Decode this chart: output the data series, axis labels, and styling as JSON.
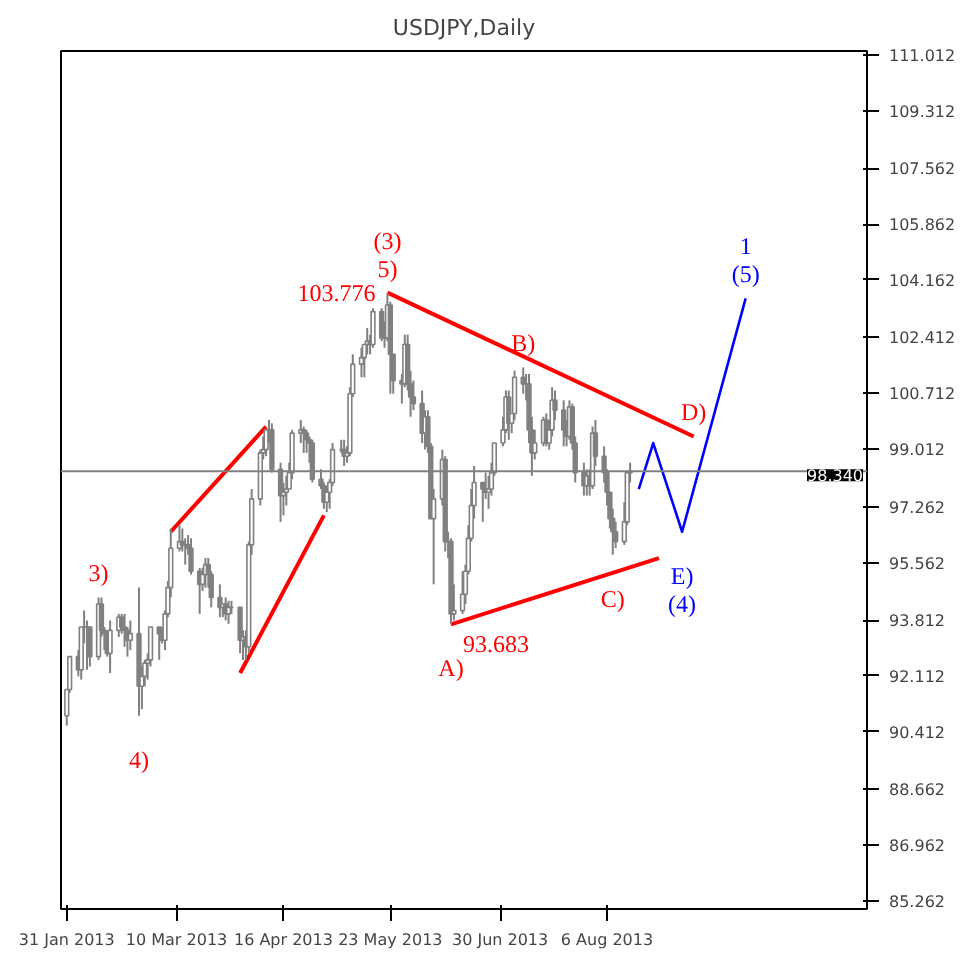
{
  "chart_data": {
    "type": "candlestick",
    "title": "USDJPY,Daily",
    "color": "#808080",
    "x": [
      "2013-01-31",
      "2013-02-01",
      "2013-02-04",
      "2013-02-05",
      "2013-02-06",
      "2013-02-07",
      "2013-02-08",
      "2013-02-11",
      "2013-02-12",
      "2013-02-13",
      "2013-02-14",
      "2013-02-15",
      "2013-02-18",
      "2013-02-19",
      "2013-02-20",
      "2013-02-21",
      "2013-02-22",
      "2013-02-25",
      "2013-02-26",
      "2013-02-27",
      "2013-02-28",
      "2013-03-01",
      "2013-03-04",
      "2013-03-05",
      "2013-03-06",
      "2013-03-07",
      "2013-03-08",
      "2013-03-11",
      "2013-03-12",
      "2013-03-13",
      "2013-03-14",
      "2013-03-15",
      "2013-03-18",
      "2013-03-19",
      "2013-03-20",
      "2013-03-21",
      "2013-03-22",
      "2013-03-25",
      "2013-03-26",
      "2013-03-27",
      "2013-03-28",
      "2013-03-29",
      "2013-04-01",
      "2013-04-02",
      "2013-04-03",
      "2013-04-04",
      "2013-04-05",
      "2013-04-08",
      "2013-04-09",
      "2013-04-10",
      "2013-04-11",
      "2013-04-12",
      "2013-04-15",
      "2013-04-16",
      "2013-04-17",
      "2013-04-18",
      "2013-04-19",
      "2013-04-22",
      "2013-04-23",
      "2013-04-24",
      "2013-04-25",
      "2013-04-26",
      "2013-04-29",
      "2013-04-30",
      "2013-05-01",
      "2013-05-02",
      "2013-05-03",
      "2013-05-06",
      "2013-05-07",
      "2013-05-08",
      "2013-05-09",
      "2013-05-10",
      "2013-05-13",
      "2013-05-14",
      "2013-05-15",
      "2013-05-16",
      "2013-05-17",
      "2013-05-20",
      "2013-05-21",
      "2013-05-22",
      "2013-05-23",
      "2013-05-24",
      "2013-05-27",
      "2013-05-28",
      "2013-05-29",
      "2013-05-30",
      "2013-05-31",
      "2013-06-03",
      "2013-06-04",
      "2013-06-05",
      "2013-06-06",
      "2013-06-07",
      "2013-06-10",
      "2013-06-11",
      "2013-06-12",
      "2013-06-13",
      "2013-06-14",
      "2013-06-17",
      "2013-06-18",
      "2013-06-19",
      "2013-06-20",
      "2013-06-21",
      "2013-06-24",
      "2013-06-25",
      "2013-06-26",
      "2013-06-27",
      "2013-06-28",
      "2013-07-01",
      "2013-07-02",
      "2013-07-03",
      "2013-07-04",
      "2013-07-05",
      "2013-07-08",
      "2013-07-09",
      "2013-07-10",
      "2013-07-11",
      "2013-07-12",
      "2013-07-15",
      "2013-07-16",
      "2013-07-17",
      "2013-07-18",
      "2013-07-19",
      "2013-07-22",
      "2013-07-23",
      "2013-07-24",
      "2013-07-25",
      "2013-07-26",
      "2013-07-29",
      "2013-07-30",
      "2013-07-31",
      "2013-08-01",
      "2013-08-02",
      "2013-08-05",
      "2013-08-06",
      "2013-08-07",
      "2013-08-08",
      "2013-08-09",
      "2013-08-12",
      "2013-08-13",
      "2013-08-14"
    ],
    "ohlc": [
      [
        90.9,
        91.7,
        90.6,
        91.7
      ],
      [
        91.7,
        92.7,
        91.6,
        92.7
      ],
      [
        92.7,
        92.9,
        92.1,
        92.3
      ],
      [
        92.3,
        93.6,
        92.0,
        93.6
      ],
      [
        93.6,
        94.1,
        93.1,
        93.6
      ],
      [
        93.6,
        93.8,
        92.3,
        93.6
      ],
      [
        93.6,
        93.6,
        92.4,
        92.7
      ],
      [
        92.7,
        94.5,
        92.6,
        94.3
      ],
      [
        94.3,
        94.5,
        93.3,
        93.5
      ],
      [
        93.5,
        93.6,
        92.9,
        93.4
      ],
      [
        93.4,
        93.5,
        92.7,
        92.8
      ],
      [
        92.8,
        93.8,
        92.2,
        93.5
      ],
      [
        93.5,
        94.0,
        93.3,
        93.9
      ],
      [
        93.9,
        94.0,
        93.4,
        93.6
      ],
      [
        93.6,
        94.0,
        93.0,
        93.5
      ],
      [
        93.5,
        93.6,
        92.7,
        93.2
      ],
      [
        93.2,
        93.8,
        92.9,
        93.4
      ],
      [
        93.4,
        94.8,
        90.9,
        91.8
      ],
      [
        91.8,
        92.4,
        91.1,
        92.1
      ],
      [
        92.1,
        92.6,
        91.8,
        92.5
      ],
      [
        92.5,
        92.8,
        92.0,
        92.6
      ],
      [
        92.6,
        93.6,
        92.4,
        93.6
      ],
      [
        93.6,
        93.6,
        92.6,
        93.4
      ],
      [
        93.4,
        93.6,
        93.1,
        93.2
      ],
      [
        93.2,
        94.1,
        92.9,
        94.0
      ],
      [
        94.0,
        95.0,
        93.9,
        94.8
      ],
      [
        94.8,
        96.6,
        94.5,
        96.0
      ],
      [
        96.0,
        96.7,
        95.9,
        96.2
      ],
      [
        96.2,
        96.6,
        95.9,
        96.1
      ],
      [
        96.1,
        96.3,
        95.5,
        96.1
      ],
      [
        96.1,
        96.4,
        95.8,
        96.0
      ],
      [
        96.0,
        96.3,
        95.2,
        95.3
      ],
      [
        95.3,
        95.4,
        94.0,
        94.9
      ],
      [
        94.9,
        95.4,
        94.7,
        95.2
      ],
      [
        95.2,
        95.7,
        94.8,
        95.5
      ],
      [
        95.5,
        95.7,
        94.8,
        95.2
      ],
      [
        95.2,
        95.3,
        94.2,
        94.5
      ],
      [
        94.5,
        94.9,
        93.9,
        94.2
      ],
      [
        94.2,
        94.3,
        93.9,
        94.3
      ],
      [
        94.3,
        94.5,
        93.8,
        94.0
      ],
      [
        94.0,
        94.4,
        93.7,
        94.2
      ],
      [
        94.2,
        94.4,
        94.0,
        94.2
      ],
      [
        94.2,
        94.2,
        92.8,
        93.2
      ],
      [
        93.2,
        93.5,
        92.6,
        93.3
      ],
      [
        93.3,
        93.5,
        92.6,
        93.0
      ],
      [
        93.0,
        96.2,
        92.8,
        96.1
      ],
      [
        96.1,
        97.8,
        95.8,
        97.5
      ],
      [
        97.5,
        99.0,
        97.3,
        98.9
      ],
      [
        98.9,
        99.4,
        98.7,
        99.0
      ],
      [
        99.0,
        99.6,
        98.8,
        99.6
      ],
      [
        99.6,
        99.9,
        99.2,
        99.6
      ],
      [
        99.6,
        99.8,
        98.3,
        98.4
      ],
      [
        98.4,
        98.6,
        96.8,
        97.6
      ],
      [
        97.6,
        98.0,
        97.0,
        97.7
      ],
      [
        97.7,
        98.2,
        97.3,
        97.8
      ],
      [
        97.8,
        98.6,
        97.8,
        98.3
      ],
      [
        98.3,
        99.6,
        98.1,
        99.5
      ],
      [
        99.5,
        99.9,
        99.2,
        99.6
      ],
      [
        99.6,
        99.7,
        98.9,
        99.5
      ],
      [
        99.5,
        99.6,
        98.9,
        99.3
      ],
      [
        99.3,
        99.4,
        98.6,
        99.2
      ],
      [
        99.2,
        99.3,
        98.0,
        98.1
      ],
      [
        98.1,
        98.4,
        97.8,
        97.9
      ],
      [
        97.9,
        98.0,
        97.2,
        97.4
      ],
      [
        97.4,
        97.9,
        97.1,
        97.7
      ],
      [
        97.7,
        98.1,
        97.2,
        98.0
      ],
      [
        98.0,
        99.2,
        97.9,
        99.0
      ],
      [
        99.0,
        99.3,
        98.9,
        99.0
      ],
      [
        99.0,
        99.3,
        98.5,
        98.8
      ],
      [
        98.8,
        99.1,
        98.6,
        98.9
      ],
      [
        98.9,
        100.9,
        98.8,
        100.7
      ],
      [
        100.7,
        101.9,
        100.6,
        101.6
      ],
      [
        101.6,
        102.1,
        101.2,
        101.8
      ],
      [
        101.8,
        102.2,
        101.2,
        102.2
      ],
      [
        102.2,
        102.7,
        101.9,
        102.3
      ],
      [
        102.3,
        102.5,
        101.9,
        102.2
      ],
      [
        102.2,
        103.3,
        102.1,
        103.2
      ],
      [
        103.2,
        103.3,
        102.3,
        102.4
      ],
      [
        102.4,
        102.9,
        102.1,
        102.4
      ],
      [
        102.4,
        103.776,
        102.3,
        103.4
      ],
      [
        103.4,
        103.5,
        100.7,
        101.9
      ],
      [
        101.9,
        101.9,
        100.7,
        101.1
      ],
      [
        101.1,
        101.3,
        100.4,
        101.0
      ],
      [
        101.0,
        102.5,
        100.9,
        102.2
      ],
      [
        102.2,
        102.5,
        100.8,
        101.0
      ],
      [
        101.0,
        101.4,
        100.0,
        100.6
      ],
      [
        100.6,
        101.1,
        100.2,
        100.4
      ],
      [
        100.4,
        100.8,
        99.2,
        99.5
      ],
      [
        99.5,
        100.2,
        99.0,
        100.0
      ],
      [
        100.0,
        100.2,
        98.9,
        99.1
      ],
      [
        99.1,
        99.2,
        96.9,
        96.9
      ],
      [
        96.9,
        97.8,
        94.9,
        97.5
      ],
      [
        97.5,
        99.0,
        97.3,
        98.7
      ],
      [
        98.7,
        98.8,
        95.9,
        96.2
      ],
      [
        96.2,
        96.5,
        95.7,
        96.2
      ],
      [
        96.2,
        96.3,
        93.683,
        94.0
      ],
      [
        94.0,
        94.9,
        93.8,
        94.1
      ],
      [
        94.1,
        95.3,
        94.0,
        94.6
      ],
      [
        94.6,
        95.5,
        94.3,
        95.3
      ],
      [
        95.3,
        96.7,
        95.2,
        96.3
      ],
      [
        96.3,
        97.8,
        96.2,
        97.3
      ],
      [
        97.3,
        98.5,
        96.9,
        98.0
      ],
      [
        98.0,
        98.0,
        96.8,
        97.8
      ],
      [
        97.8,
        98.3,
        97.5,
        97.7
      ],
      [
        97.7,
        98.2,
        97.2,
        97.8
      ],
      [
        97.8,
        98.6,
        97.6,
        98.3
      ],
      [
        98.3,
        99.2,
        98.2,
        99.2
      ],
      [
        99.2,
        100.0,
        99.1,
        99.6
      ],
      [
        99.6,
        100.8,
        99.5,
        100.6
      ],
      [
        100.6,
        100.8,
        99.3,
        99.8
      ],
      [
        99.8,
        100.1,
        99.5,
        100.1
      ],
      [
        100.1,
        101.4,
        99.9,
        101.2
      ],
      [
        101.2,
        101.5,
        100.7,
        101.0
      ],
      [
        101.0,
        101.3,
        100.5,
        101.0
      ],
      [
        101.0,
        101.3,
        99.2,
        99.6
      ],
      [
        99.6,
        100.0,
        98.2,
        98.9
      ],
      [
        98.9,
        99.6,
        98.7,
        99.2
      ],
      [
        99.2,
        100.0,
        99.1,
        99.9
      ],
      [
        99.9,
        100.1,
        99.1,
        99.2
      ],
      [
        99.2,
        99.9,
        99.0,
        99.6
      ],
      [
        99.6,
        100.9,
        99.4,
        100.5
      ],
      [
        100.5,
        100.8,
        99.9,
        100.2
      ],
      [
        100.2,
        100.5,
        99.1,
        99.6
      ],
      [
        99.6,
        99.9,
        99.1,
        99.4
      ],
      [
        99.4,
        100.5,
        99.3,
        100.3
      ],
      [
        100.3,
        100.4,
        99.0,
        99.2
      ],
      [
        99.2,
        99.4,
        98.0,
        98.3
      ],
      [
        98.3,
        98.6,
        97.6,
        97.9
      ],
      [
        97.9,
        98.4,
        97.6,
        98.2
      ],
      [
        98.2,
        98.4,
        97.6,
        97.9
      ],
      [
        97.9,
        99.7,
        97.8,
        99.5
      ],
      [
        99.5,
        99.9,
        98.5,
        98.8
      ],
      [
        98.8,
        99.1,
        98.0,
        98.3
      ],
      [
        98.3,
        98.4,
        97.3,
        97.7
      ],
      [
        97.7,
        97.7,
        96.6,
        96.9
      ],
      [
        96.9,
        97.2,
        95.8,
        96.5
      ],
      [
        96.5,
        96.8,
        96.0,
        96.2
      ],
      [
        96.2,
        97.4,
        96.1,
        96.8
      ],
      [
        96.8,
        98.3,
        96.7,
        98.3
      ],
      [
        98.3,
        98.6,
        98.0,
        98.34
      ]
    ],
    "series": [
      {
        "type": "line",
        "color": "#ff0000",
        "x": [
          "2013-03-08",
          "2013-04-10"
        ],
        "values": [
          96.5,
          99.7
        ]
      },
      {
        "type": "line",
        "color": "#ff0000",
        "x": [
          "2013-04-01",
          "2013-04-30"
        ],
        "values": [
          92.2,
          97.0
        ]
      },
      {
        "type": "line",
        "color": "#ff0000",
        "x": [
          "2013-05-22",
          "2013-09-05"
        ],
        "values": [
          103.776,
          99.4
        ]
      },
      {
        "type": "line",
        "color": "#ff0000",
        "x": [
          "2013-06-13",
          "2013-08-24"
        ],
        "values": [
          93.683,
          95.7
        ]
      },
      {
        "type": "line",
        "color": "#0000ff",
        "x": [
          "2013-08-17",
          "2013-08-22",
          "2013-09-01",
          "2013-09-23"
        ],
        "values": [
          97.8,
          99.2,
          96.5,
          103.6
        ]
      }
    ],
    "ref_lines": [
      {
        "axis": "y",
        "value": 98.34,
        "label": "98.340",
        "color": "#808080"
      }
    ],
    "annotations": [
      {
        "text": "3)",
        "x": "2013-02-11",
        "y": 94.5
      },
      {
        "text": "4)",
        "x": "2013-02-25",
        "y": 90.9
      },
      {
        "text": "5)",
        "x": "2013-05-22",
        "y": 103.776
      },
      {
        "text": "103.776",
        "x": "2013-05-22",
        "y": 103.776
      },
      {
        "text": "(3)",
        "x": "2013-05-22",
        "y": 103.776
      },
      {
        "text": "B)",
        "x": "2013-07-08",
        "y": 101.5
      },
      {
        "text": "A)",
        "x": "2013-06-13",
        "y": 93.683
      },
      {
        "text": "93.683",
        "x": "2013-06-13",
        "y": 93.683
      },
      {
        "text": "C)",
        "x": "2013-08-08",
        "y": 95.8
      },
      {
        "text": "D)",
        "x": "2013-09-05",
        "y": 99.4
      },
      {
        "text": "E)",
        "x": "2013-09-01",
        "y": 96.5
      },
      {
        "text": "(4)",
        "x": "2013-09-01",
        "y": 96.5
      },
      {
        "text": "(5)",
        "x": "2013-09-23",
        "y": 103.6
      },
      {
        "text": "1",
        "x": "2013-09-23",
        "y": 103.6
      }
    ],
    "xlim": [
      "2013-01-29",
      "2013-11-04"
    ],
    "xticks": [
      {
        "value": "2013-01-31",
        "label": "31 Jan 2013"
      },
      {
        "value": "2013-03-10",
        "label": "10 Mar 2013"
      },
      {
        "value": "2013-04-16",
        "label": "16 Apr 2013"
      },
      {
        "value": "2013-05-23",
        "label": "23 May 2013"
      },
      {
        "value": "2013-06-30",
        "label": "30 Jun 2013"
      },
      {
        "value": "2013-08-06",
        "label": "6 Aug 2013"
      }
    ],
    "ylim": [
      85.02,
      111.13
    ],
    "yticks": [
      111.012,
      109.312,
      107.562,
      105.862,
      104.162,
      102.412,
      100.712,
      99.012,
      97.262,
      95.562,
      93.812,
      92.112,
      90.412,
      88.662,
      86.962,
      85.262
    ],
    "grid": false
  }
}
